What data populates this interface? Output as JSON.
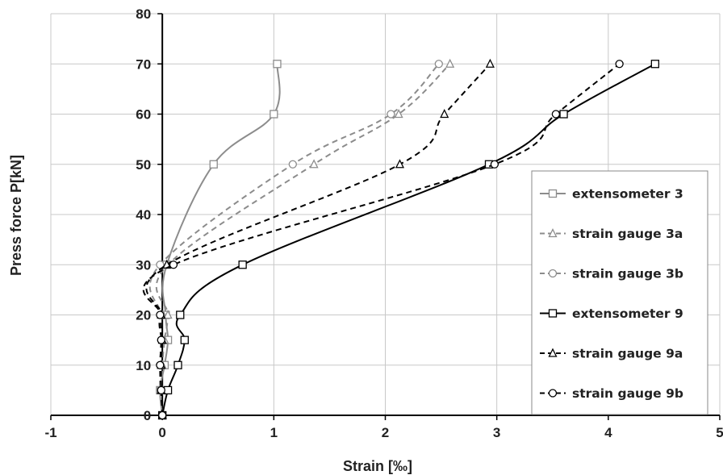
{
  "chart_data": {
    "type": "line",
    "title": "",
    "xlabel": "Strain [‰]",
    "ylabel": "Press force P[kN]",
    "xlim": [
      -1,
      5
    ],
    "ylim": [
      0,
      80
    ],
    "x_ticks": [
      "-1",
      "0",
      "1",
      "2",
      "3",
      "4",
      "5"
    ],
    "y_ticks": [
      "0",
      "10",
      "20",
      "30",
      "40",
      "50",
      "60",
      "70",
      "80"
    ],
    "grid": true,
    "legend_position": "right",
    "series": [
      {
        "name": "extensometer 3",
        "color": "#8c8c8c",
        "dash": "solid",
        "marker": "square",
        "points": [
          [
            0,
            0
          ],
          [
            -0.02,
            5
          ],
          [
            0.02,
            10
          ],
          [
            0.05,
            15
          ],
          [
            0.03,
            20
          ],
          [
            0.04,
            30
          ],
          [
            0.46,
            50
          ],
          [
            1.0,
            60
          ],
          [
            1.03,
            70
          ]
        ]
      },
      {
        "name": "strain gauge 3a",
        "color": "#8c8c8c",
        "dash": "dashed",
        "marker": "triangle",
        "points": [
          [
            0,
            0
          ],
          [
            -0.01,
            5
          ],
          [
            0.0,
            10
          ],
          [
            0.02,
            15
          ],
          [
            0.05,
            20
          ],
          [
            0.05,
            30
          ],
          [
            1.36,
            50
          ],
          [
            2.12,
            60
          ],
          [
            2.58,
            70
          ]
        ]
      },
      {
        "name": "strain gauge 3b",
        "color": "#8c8c8c",
        "dash": "dashed",
        "marker": "circle",
        "points": [
          [
            0,
            0
          ],
          [
            -0.02,
            5
          ],
          [
            -0.02,
            10
          ],
          [
            -0.01,
            15
          ],
          [
            -0.01,
            20
          ],
          [
            -0.02,
            30
          ],
          [
            1.17,
            50
          ],
          [
            2.05,
            60
          ],
          [
            2.48,
            70
          ]
        ]
      },
      {
        "name": "extensometer 9",
        "color": "#000000",
        "dash": "solid",
        "marker": "square",
        "points": [
          [
            0,
            0
          ],
          [
            0.05,
            5
          ],
          [
            0.14,
            10
          ],
          [
            0.2,
            15
          ],
          [
            0.16,
            20
          ],
          [
            0.72,
            30
          ],
          [
            2.93,
            50
          ],
          [
            3.6,
            60
          ],
          [
            4.42,
            70
          ]
        ]
      },
      {
        "name": "strain gauge 9a",
        "color": "#000000",
        "dash": "dashed",
        "marker": "triangle",
        "points": [
          [
            0,
            0
          ],
          [
            -0.01,
            5
          ],
          [
            -0.01,
            10
          ],
          [
            0.0,
            15
          ],
          [
            -0.01,
            20
          ],
          [
            0.04,
            30
          ],
          [
            2.13,
            50
          ],
          [
            2.53,
            60
          ],
          [
            2.94,
            70
          ]
        ]
      },
      {
        "name": "strain gauge 9b",
        "color": "#000000",
        "dash": "dashed",
        "marker": "circle",
        "points": [
          [
            0,
            0
          ],
          [
            -0.01,
            5
          ],
          [
            -0.02,
            10
          ],
          [
            -0.01,
            15
          ],
          [
            -0.02,
            20
          ],
          [
            0.1,
            30
          ],
          [
            2.98,
            50
          ],
          [
            3.53,
            60
          ],
          [
            4.1,
            70
          ]
        ]
      }
    ]
  }
}
